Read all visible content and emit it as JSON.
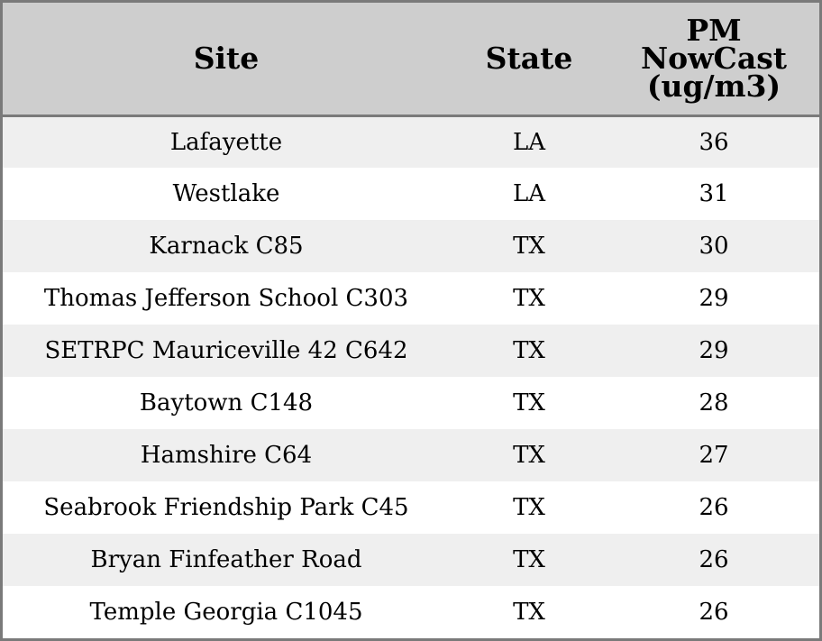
{
  "table": {
    "headers": {
      "site": "Site",
      "state": "State",
      "pm_lines": [
        "PM",
        "NowCast",
        "(ug/m3)"
      ]
    },
    "rows": [
      {
        "site": "Lafayette",
        "state": "LA",
        "pm": "36"
      },
      {
        "site": "Westlake",
        "state": "LA",
        "pm": "31"
      },
      {
        "site": "Karnack C85",
        "state": "TX",
        "pm": "30"
      },
      {
        "site": "Thomas Jefferson School C303",
        "state": "TX",
        "pm": "29"
      },
      {
        "site": "SETRPC Mauriceville 42 C642",
        "state": "TX",
        "pm": "29"
      },
      {
        "site": "Baytown C148",
        "state": "TX",
        "pm": "28"
      },
      {
        "site": "Hamshire C64",
        "state": "TX",
        "pm": "27"
      },
      {
        "site": "Seabrook Friendship Park C45",
        "state": "TX",
        "pm": "26"
      },
      {
        "site": "Bryan Finfeather Road",
        "state": "TX",
        "pm": "26"
      },
      {
        "site": "Temple Georgia C1045",
        "state": "TX",
        "pm": "26"
      }
    ]
  },
  "colors": {
    "header_background": "#cecece",
    "border": "#7a7a7a",
    "row_stripe": "#efefef",
    "row_plain": "#ffffff",
    "text": "#000000"
  }
}
